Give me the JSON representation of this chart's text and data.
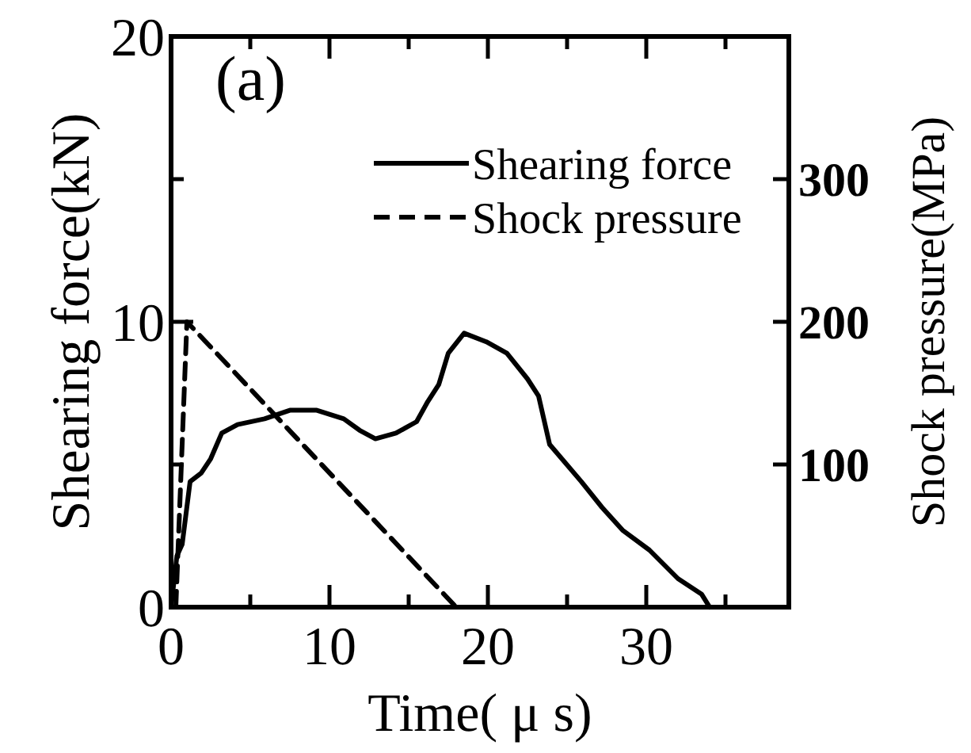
{
  "chart_data": {
    "type": "line",
    "xlabel": "Time( μ s)",
    "ylabel": "Shearing force(kN)",
    "y2label": "Shock pressure(MPa)",
    "annotations": [
      "(a)"
    ],
    "xlim": [
      0,
      39
    ],
    "xticks": [
      0,
      {
        "value": 5,
        "label": null
      },
      10,
      {
        "value": 15,
        "label": null
      },
      20,
      {
        "value": 25,
        "label": null
      },
      30,
      {
        "value": 35,
        "label": null
      }
    ],
    "ylim": [
      0,
      20
    ],
    "yticks": [
      0,
      {
        "value": 5,
        "label": null
      },
      10,
      {
        "value": 15,
        "label": null
      },
      20
    ],
    "y2lim": [
      0,
      400
    ],
    "y2ticks": [
      100,
      200,
      300
    ],
    "legend": "top right",
    "grid": false,
    "series": [
      {
        "name": "Shearing force",
        "color": "#000000",
        "line_style": "solid",
        "x": [
          0,
          0.37,
          0.7,
          1.2,
          1.9,
          2.5,
          3.2,
          4.2,
          5.9,
          7.5,
          9.2,
          10.9,
          11.9,
          12.9,
          14.2,
          15.5,
          16.2,
          16.9,
          17.5,
          18.5,
          19.9,
          21.2,
          22.5,
          23.2,
          23.9,
          25.9,
          27.2,
          28.5,
          30.2,
          32,
          33.5,
          34
        ],
        "values": [
          0,
          1.8,
          2.2,
          4.4,
          4.7,
          5.2,
          6.1,
          6.4,
          6.6,
          6.9,
          6.9,
          6.6,
          6.2,
          5.9,
          6.1,
          6.5,
          7.2,
          7.8,
          8.9,
          9.6,
          9.3,
          8.9,
          8.0,
          7.4,
          5.7,
          4.4,
          3.5,
          2.7,
          2.0,
          1.0,
          0.45,
          0
        ]
      },
      {
        "name": "Shock pressure",
        "color": "#000000",
        "line_style": "dashed",
        "axis": "y2",
        "x": [
          0.3,
          1,
          18
        ],
        "values": [
          0,
          200,
          0
        ]
      }
    ]
  }
}
